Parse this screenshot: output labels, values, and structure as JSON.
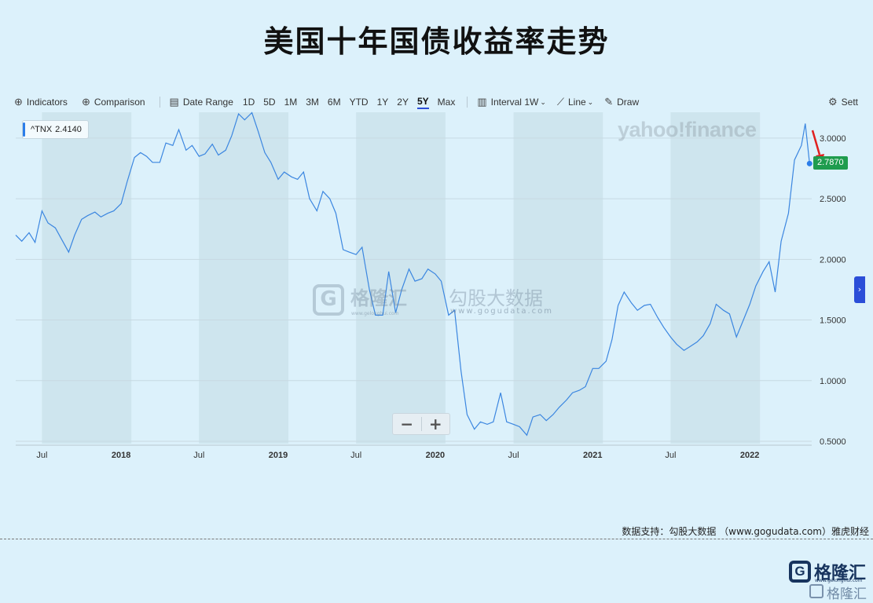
{
  "title": "美国十年国债收益率走势",
  "toolbar": {
    "indicators": "Indicators",
    "comparison": "Comparison",
    "date_range": "Date Range",
    "ranges": [
      "1D",
      "5D",
      "1M",
      "3M",
      "6M",
      "YTD",
      "1Y",
      "2Y",
      "5Y",
      "Max"
    ],
    "selected_range": "5Y",
    "interval": "Interval",
    "interval_value": "1W",
    "line": "Line",
    "draw": "Draw",
    "settings": "Sett",
    "accent_color": "#2b4ed8"
  },
  "ticker": {
    "symbol": "^TNX",
    "value": "2.4140"
  },
  "watermark": {
    "yahoo": "yahoo!finance",
    "gelonghui_cn": "格隆汇",
    "gelonghui_url": "www.gelonghui.com",
    "gogudata_cn": "勾股大数据",
    "gogudata_url": "www.gogudata.com"
  },
  "zoom": {
    "minus": "−",
    "plus": "+"
  },
  "source_text": "数据支持：勾股大数据 （www.gogudata.com）雅虎财经",
  "logo": {
    "glyph": "G",
    "name": "格隆汇",
    "sub": "www.gelonghui.com"
  },
  "chart_data": {
    "type": "line",
    "series": [
      {
        "name": "^TNX",
        "color": "#3b86e0"
      }
    ],
    "x_range": [
      "2017-05",
      "2022-05"
    ],
    "ylim": [
      0.5,
      3.2
    ],
    "y_ticks": [
      "3.0000",
      "2.5000",
      "2.0000",
      "1.5000",
      "1.0000",
      "0.5000"
    ],
    "x_ticks": [
      "Jul",
      "2018",
      "Jul",
      "2019",
      "Jul",
      "2020",
      "Jul",
      "2021",
      "Jul",
      "2022"
    ],
    "x_tick_dates": [
      "2017-07",
      "2018-01",
      "2018-07",
      "2019-01",
      "2019-07",
      "2020-01",
      "2020-07",
      "2021-01",
      "2021-07",
      "2022-01"
    ],
    "last_value": "2.7870",
    "last_value_color": "#1f9c4e",
    "arrow_color": "#e02020",
    "grid": true,
    "shaded_bands": [
      [
        "2017-07",
        "2017-12"
      ],
      [
        "2018-07",
        "2018-12"
      ],
      [
        "2019-07",
        "2019-12"
      ],
      [
        "2020-07",
        "2020-12"
      ],
      [
        "2021-07",
        "2021-12"
      ]
    ],
    "points": [
      [
        "2017-05-01",
        2.2
      ],
      [
        "2017-05-15",
        2.15
      ],
      [
        "2017-06-01",
        2.22
      ],
      [
        "2017-06-15",
        2.14
      ],
      [
        "2017-07-01",
        2.4
      ],
      [
        "2017-07-15",
        2.3
      ],
      [
        "2017-08-01",
        2.26
      ],
      [
        "2017-08-15",
        2.17
      ],
      [
        "2017-09-01",
        2.06
      ],
      [
        "2017-09-15",
        2.2
      ],
      [
        "2017-10-01",
        2.33
      ],
      [
        "2017-10-15",
        2.36
      ],
      [
        "2017-11-01",
        2.39
      ],
      [
        "2017-11-15",
        2.35
      ],
      [
        "2017-12-01",
        2.38
      ],
      [
        "2017-12-15",
        2.4
      ],
      [
        "2018-01-01",
        2.46
      ],
      [
        "2018-01-15",
        2.64
      ],
      [
        "2018-02-01",
        2.84
      ],
      [
        "2018-02-15",
        2.88
      ],
      [
        "2018-03-01",
        2.85
      ],
      [
        "2018-03-15",
        2.8
      ],
      [
        "2018-04-01",
        2.8
      ],
      [
        "2018-04-15",
        2.96
      ],
      [
        "2018-05-01",
        2.94
      ],
      [
        "2018-05-15",
        3.07
      ],
      [
        "2018-06-01",
        2.9
      ],
      [
        "2018-06-15",
        2.94
      ],
      [
        "2018-07-01",
        2.85
      ],
      [
        "2018-07-15",
        2.87
      ],
      [
        "2018-08-01",
        2.95
      ],
      [
        "2018-08-15",
        2.86
      ],
      [
        "2018-09-01",
        2.9
      ],
      [
        "2018-09-15",
        3.02
      ],
      [
        "2018-10-01",
        3.2
      ],
      [
        "2018-10-15",
        3.15
      ],
      [
        "2018-11-01",
        3.21
      ],
      [
        "2018-11-15",
        3.06
      ],
      [
        "2018-12-01",
        2.88
      ],
      [
        "2018-12-15",
        2.8
      ],
      [
        "2019-01-01",
        2.66
      ],
      [
        "2019-01-15",
        2.72
      ],
      [
        "2019-02-01",
        2.68
      ],
      [
        "2019-02-15",
        2.66
      ],
      [
        "2019-03-01",
        2.72
      ],
      [
        "2019-03-15",
        2.5
      ],
      [
        "2019-04-01",
        2.4
      ],
      [
        "2019-04-15",
        2.56
      ],
      [
        "2019-05-01",
        2.5
      ],
      [
        "2019-05-15",
        2.38
      ],
      [
        "2019-06-01",
        2.08
      ],
      [
        "2019-06-15",
        2.06
      ],
      [
        "2019-07-01",
        2.04
      ],
      [
        "2019-07-15",
        2.1
      ],
      [
        "2019-08-01",
        1.75
      ],
      [
        "2019-08-15",
        1.54
      ],
      [
        "2019-09-01",
        1.54
      ],
      [
        "2019-09-15",
        1.9
      ],
      [
        "2019-10-01",
        1.56
      ],
      [
        "2019-10-15",
        1.75
      ],
      [
        "2019-11-01",
        1.92
      ],
      [
        "2019-11-15",
        1.82
      ],
      [
        "2019-12-01",
        1.84
      ],
      [
        "2019-12-15",
        1.92
      ],
      [
        "2020-01-01",
        1.88
      ],
      [
        "2020-01-15",
        1.82
      ],
      [
        "2020-02-01",
        1.54
      ],
      [
        "2020-02-15",
        1.58
      ],
      [
        "2020-03-01",
        1.08
      ],
      [
        "2020-03-15",
        0.72
      ],
      [
        "2020-04-01",
        0.6
      ],
      [
        "2020-04-15",
        0.66
      ],
      [
        "2020-05-01",
        0.64
      ],
      [
        "2020-05-15",
        0.66
      ],
      [
        "2020-06-01",
        0.9
      ],
      [
        "2020-06-15",
        0.66
      ],
      [
        "2020-07-01",
        0.64
      ],
      [
        "2020-07-15",
        0.62
      ],
      [
        "2020-08-01",
        0.55
      ],
      [
        "2020-08-15",
        0.7
      ],
      [
        "2020-09-01",
        0.72
      ],
      [
        "2020-09-15",
        0.67
      ],
      [
        "2020-10-01",
        0.72
      ],
      [
        "2020-10-15",
        0.78
      ],
      [
        "2020-11-01",
        0.84
      ],
      [
        "2020-11-15",
        0.9
      ],
      [
        "2020-12-01",
        0.92
      ],
      [
        "2020-12-15",
        0.95
      ],
      [
        "2021-01-01",
        1.1
      ],
      [
        "2021-01-15",
        1.1
      ],
      [
        "2021-02-01",
        1.16
      ],
      [
        "2021-02-15",
        1.34
      ],
      [
        "2021-03-01",
        1.62
      ],
      [
        "2021-03-15",
        1.73
      ],
      [
        "2021-04-01",
        1.64
      ],
      [
        "2021-04-15",
        1.58
      ],
      [
        "2021-05-01",
        1.62
      ],
      [
        "2021-05-15",
        1.63
      ],
      [
        "2021-06-01",
        1.52
      ],
      [
        "2021-06-15",
        1.44
      ],
      [
        "2021-07-01",
        1.36
      ],
      [
        "2021-07-15",
        1.3
      ],
      [
        "2021-08-01",
        1.25
      ],
      [
        "2021-08-15",
        1.28
      ],
      [
        "2021-09-01",
        1.32
      ],
      [
        "2021-09-15",
        1.37
      ],
      [
        "2021-10-01",
        1.47
      ],
      [
        "2021-10-15",
        1.63
      ],
      [
        "2021-11-01",
        1.58
      ],
      [
        "2021-11-15",
        1.55
      ],
      [
        "2021-12-01",
        1.36
      ],
      [
        "2021-12-15",
        1.48
      ],
      [
        "2022-01-01",
        1.63
      ],
      [
        "2022-01-15",
        1.78
      ],
      [
        "2022-02-01",
        1.9
      ],
      [
        "2022-02-15",
        1.98
      ],
      [
        "2022-03-01",
        1.73
      ],
      [
        "2022-03-15",
        2.15
      ],
      [
        "2022-04-01",
        2.38
      ],
      [
        "2022-04-15",
        2.82
      ],
      [
        "2022-05-01",
        2.94
      ],
      [
        "2022-05-10",
        3.12
      ],
      [
        "2022-05-20",
        2.79
      ]
    ]
  }
}
